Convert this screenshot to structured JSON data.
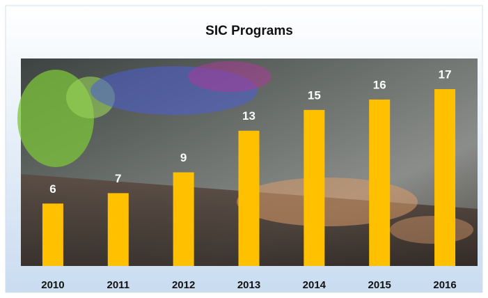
{
  "chart_data": {
    "type": "bar",
    "title": "SIC Programs",
    "categories": [
      "2010",
      "2011",
      "2012",
      "2013",
      "2014",
      "2015",
      "2016"
    ],
    "values": [
      6,
      7,
      9,
      13,
      15,
      16,
      17
    ],
    "color": "#ffc000"
  }
}
